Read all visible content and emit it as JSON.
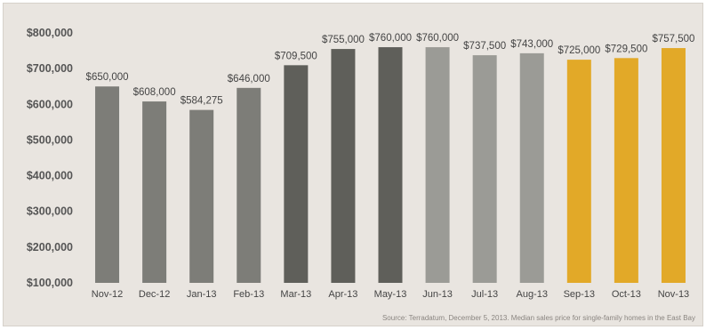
{
  "chart_data": {
    "type": "bar",
    "categories": [
      "Nov-12",
      "Dec-12",
      "Jan-13",
      "Feb-13",
      "Mar-13",
      "Apr-13",
      "May-13",
      "Jun-13",
      "Jul-13",
      "Aug-13",
      "Sep-13",
      "Oct-13",
      "Nov-13"
    ],
    "values": [
      650000,
      608000,
      584275,
      646000,
      709500,
      755000,
      760000,
      760000,
      737500,
      743000,
      725000,
      729500,
      757500
    ],
    "value_labels": [
      "$650,000",
      "$608,000",
      "$584,275",
      "$646,000",
      "$709,500",
      "$755,000",
      "$760,000",
      "$760,000",
      "$737,500",
      "$743,000",
      "$725,000",
      "$729,500",
      "$757,500"
    ],
    "bar_colors": [
      "#7d7d78",
      "#7d7d78",
      "#7d7d78",
      "#7d7d78",
      "#5f5f5a",
      "#5f5f5a",
      "#5f5f5a",
      "#9b9b96",
      "#9b9b96",
      "#9b9b96",
      "#e2a928",
      "#e2a928",
      "#e2a928"
    ],
    "ylim": [
      100000,
      800000
    ],
    "yticks": [
      100000,
      200000,
      300000,
      400000,
      500000,
      600000,
      700000,
      800000
    ],
    "ytick_labels": [
      "$100,000",
      "$200,000",
      "$300,000",
      "$400,000",
      "$500,000",
      "$600,000",
      "$700,000",
      "$800,000"
    ],
    "title": "",
    "xlabel": "",
    "ylabel": "",
    "grid": false,
    "legend": "none",
    "source": "Source: Terradatum, December 5, 2013. Median sales price for single-family homes in the East Bay"
  }
}
